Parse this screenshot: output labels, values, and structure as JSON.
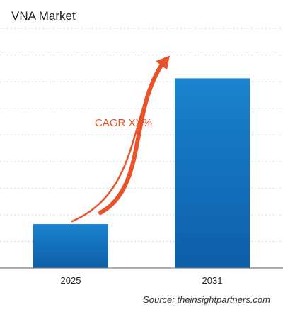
{
  "chart_data": {
    "type": "bar",
    "title": "VNA Market",
    "categories": [
      "2025",
      "2031"
    ],
    "values": [
      22,
      95
    ],
    "ylim": [
      0,
      120
    ],
    "grid": true,
    "annotation": "CAGR XX%",
    "colors": {
      "bar_top": "#1a83cf",
      "bar_bottom": "#0d5ea8",
      "arrow": "#e8532a",
      "annotation": "#e8532a",
      "grid": "#d6d6d6",
      "axis": "#7a7a7a"
    }
  },
  "source": "Source: theinsightpartners.com"
}
